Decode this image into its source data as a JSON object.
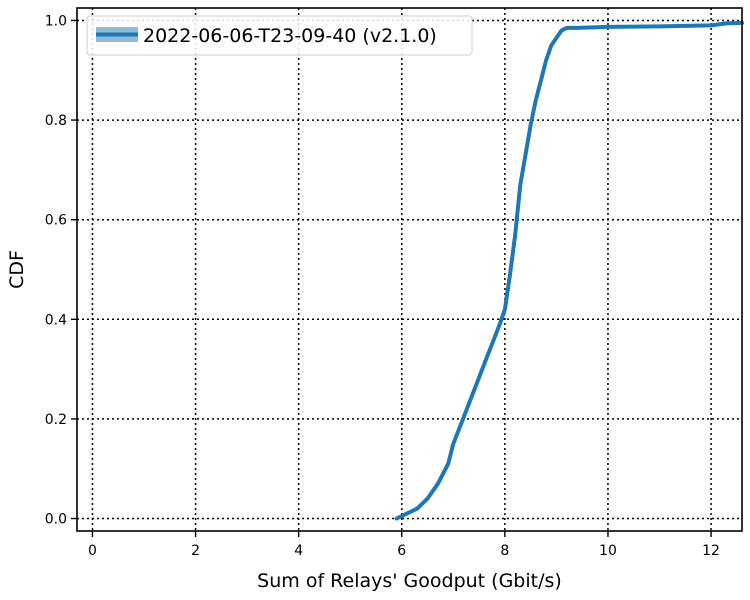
{
  "chart_data": {
    "type": "line",
    "title": "",
    "xlabel": "Sum of Relays' Goodput (Gbit/s)",
    "ylabel": "CDF",
    "xlim": [
      -0.3,
      12.6
    ],
    "ylim": [
      -0.025,
      1.025
    ],
    "x_ticks": [
      0,
      2,
      4,
      6,
      8,
      10,
      12
    ],
    "y_ticks": [
      0.0,
      0.2,
      0.4,
      0.6,
      0.8,
      1.0
    ],
    "x_tick_labels": [
      "0",
      "2",
      "4",
      "6",
      "8",
      "10",
      "12"
    ],
    "y_tick_labels": [
      "0.0",
      "0.2",
      "0.4",
      "0.6",
      "0.8",
      "1.0"
    ],
    "grid": true,
    "grid_style": "dotted",
    "legend_position": "top-left",
    "series": [
      {
        "name": "2022-06-06-T23-09-40 (v2.1.0)",
        "color": "#1f77b4",
        "x": [
          5.9,
          6.1,
          6.3,
          6.5,
          6.7,
          6.9,
          7.0,
          7.15,
          7.3,
          7.45,
          7.6,
          7.75,
          7.9,
          8.0,
          8.1,
          8.2,
          8.3,
          8.4,
          8.5,
          8.6,
          8.7,
          8.8,
          8.9,
          9.0,
          9.1,
          9.2,
          9.4,
          10.0,
          11.0,
          12.0,
          12.3,
          12.6
        ],
        "y": [
          0.0,
          0.01,
          0.02,
          0.04,
          0.07,
          0.11,
          0.15,
          0.19,
          0.23,
          0.27,
          0.31,
          0.35,
          0.39,
          0.42,
          0.49,
          0.57,
          0.67,
          0.73,
          0.79,
          0.84,
          0.88,
          0.92,
          0.95,
          0.965,
          0.98,
          0.985,
          0.985,
          0.987,
          0.988,
          0.99,
          0.994,
          0.995
        ]
      }
    ]
  }
}
